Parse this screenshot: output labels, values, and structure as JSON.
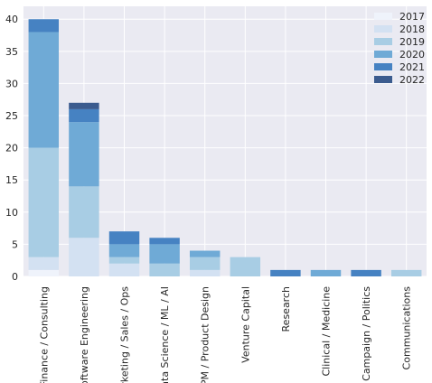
{
  "chart_data": {
    "type": "bar",
    "stacked": true,
    "categories": [
      "Finance / Consulting",
      "Software Engineering",
      "Marketing / Sales / Ops",
      "Data Science / ML / AI",
      "PM / Product Design",
      "Venture Capital",
      "Research",
      "Clinical / Medicine",
      "Campaign / Politics",
      "Communications"
    ],
    "series": [
      {
        "name": "2017",
        "color": "#eff3fb",
        "values": [
          1,
          0,
          0,
          0,
          0,
          0,
          0,
          0,
          0,
          0
        ]
      },
      {
        "name": "2018",
        "color": "#d3e1f2",
        "values": [
          2,
          6,
          2,
          0,
          1,
          0,
          0,
          0,
          0,
          0
        ]
      },
      {
        "name": "2019",
        "color": "#a8cde4",
        "values": [
          17,
          8,
          1,
          2,
          2,
          3,
          0,
          0,
          0,
          1
        ]
      },
      {
        "name": "2020",
        "color": "#6faad6",
        "values": [
          18,
          10,
          2,
          3,
          1,
          0,
          0,
          1,
          0,
          0
        ]
      },
      {
        "name": "2021",
        "color": "#4682c2",
        "values": [
          2,
          2,
          2,
          1,
          0,
          0,
          1,
          0,
          1,
          0
        ]
      },
      {
        "name": "2022",
        "color": "#3b5b8e",
        "values": [
          0,
          1,
          0,
          0,
          0,
          0,
          0,
          0,
          0,
          0
        ]
      }
    ],
    "ylim": [
      0,
      42
    ],
    "yticks": [
      0,
      5,
      10,
      15,
      20,
      25,
      30,
      35,
      40
    ],
    "grid": true,
    "legend_position": "top-right",
    "title": "",
    "xlabel": "",
    "ylabel": ""
  }
}
